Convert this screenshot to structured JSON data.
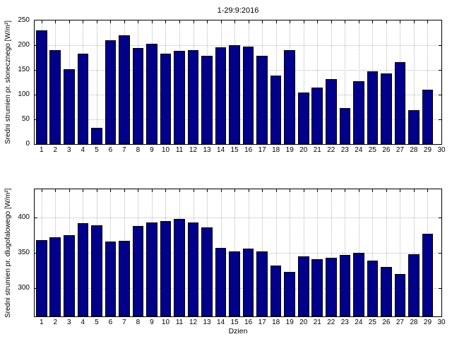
{
  "colors": {
    "bar": "#00008B",
    "bar_edge": "#000000",
    "grid": "#b8b8b8",
    "axis": "#000000"
  },
  "chart_data": [
    {
      "type": "bar",
      "title": "1-29:9:2016",
      "ylabel": "Sredni strumien pr. slonecznego [W/m²]",
      "xlabel": "",
      "categories": [
        1,
        2,
        3,
        4,
        5,
        6,
        7,
        8,
        9,
        10,
        11,
        12,
        13,
        14,
        15,
        16,
        17,
        18,
        19,
        20,
        21,
        22,
        23,
        24,
        25,
        26,
        27,
        28,
        29
      ],
      "values": [
        230,
        190,
        152,
        183,
        33,
        210,
        220,
        194,
        203,
        183,
        188,
        190,
        178,
        196,
        200,
        197,
        179,
        138,
        190,
        104,
        114,
        132,
        73,
        127,
        147,
        143,
        166,
        69,
        110
      ],
      "xlim": [
        0.5,
        30
      ],
      "ylim": [
        0,
        250
      ],
      "xticks": [
        1,
        2,
        3,
        4,
        5,
        6,
        7,
        8,
        9,
        10,
        11,
        12,
        13,
        14,
        15,
        16,
        17,
        18,
        19,
        20,
        21,
        22,
        23,
        24,
        25,
        26,
        27,
        28,
        29,
        30
      ],
      "yticks": [
        0,
        50,
        100,
        150,
        200,
        250
      ],
      "grid": true,
      "legend": null
    },
    {
      "type": "bar",
      "title": "",
      "ylabel": "Sredni strumien pr. dlugofalowego [W/m²]",
      "xlabel": "Dzien",
      "categories": [
        1,
        2,
        3,
        4,
        5,
        6,
        7,
        8,
        9,
        10,
        11,
        12,
        13,
        14,
        15,
        16,
        17,
        18,
        19,
        20,
        21,
        22,
        23,
        24,
        25,
        26,
        27,
        28,
        29
      ],
      "values": [
        368,
        372,
        375,
        392,
        389,
        366,
        367,
        388,
        393,
        395,
        398,
        393,
        386,
        357,
        352,
        356,
        352,
        332,
        323,
        345,
        341,
        343,
        347,
        350,
        339,
        330,
        320,
        348,
        377
      ],
      "xlim": [
        0.5,
        30
      ],
      "ylim": [
        260,
        440
      ],
      "xticks": [
        1,
        2,
        3,
        4,
        5,
        6,
        7,
        8,
        9,
        10,
        11,
        12,
        13,
        14,
        15,
        16,
        17,
        18,
        19,
        20,
        21,
        22,
        23,
        24,
        25,
        26,
        27,
        28,
        29,
        30
      ],
      "yticks": [
        300,
        350,
        400
      ],
      "grid": true,
      "legend": null
    }
  ]
}
